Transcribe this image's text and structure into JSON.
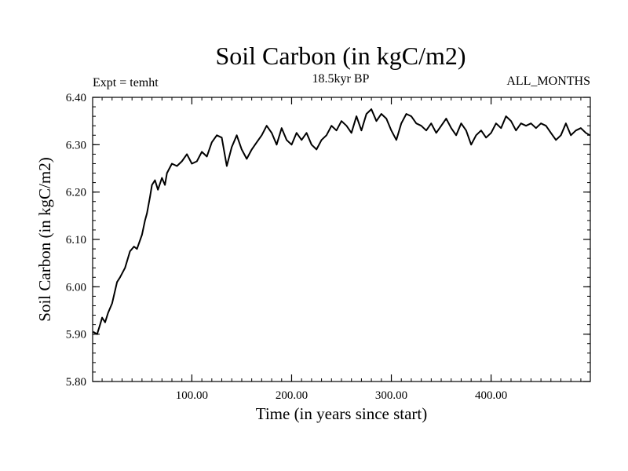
{
  "chart_data": {
    "type": "line",
    "title": "Soil Carbon (in kgC/m2)",
    "subtitle": "18.5kyr BP",
    "left_label": "Expt = temht",
    "right_label": "ALL_MONTHS",
    "xlabel": "Time (in years since start)",
    "ylabel": "Soil Carbon (in kgC/m2)",
    "xlim": [
      0.5,
      499.5
    ],
    "ylim": [
      5.8,
      6.4
    ],
    "x_ticks": [
      100,
      200,
      300,
      400
    ],
    "x_tick_labels": [
      "100.00",
      "200.00",
      "300.00",
      "400.00"
    ],
    "x_minor_step": 10,
    "y_ticks": [
      5.8,
      5.9,
      6.0,
      6.1,
      6.2,
      6.3,
      6.4
    ],
    "y_tick_labels": [
      "5.80",
      "5.90",
      "6.00",
      "6.10",
      "6.20",
      "6.30",
      "6.40"
    ],
    "y_minor_step": 0.02,
    "grid": false,
    "series": [
      {
        "name": "Soil Carbon",
        "color": "#000000",
        "x": [
          1,
          5,
          8,
          10,
          13,
          16,
          20,
          25,
          28,
          33,
          38,
          42,
          45,
          50,
          53,
          55,
          58,
          60,
          63,
          66,
          70,
          73,
          75,
          80,
          85,
          90,
          95,
          100,
          105,
          110,
          115,
          120,
          125,
          130,
          135,
          140,
          145,
          150,
          155,
          160,
          165,
          170,
          175,
          180,
          185,
          190,
          195,
          200,
          205,
          210,
          215,
          220,
          225,
          230,
          235,
          240,
          245,
          250,
          255,
          260,
          265,
          270,
          275,
          280,
          285,
          290,
          295,
          300,
          305,
          310,
          315,
          320,
          325,
          330,
          335,
          340,
          345,
          350,
          355,
          360,
          365,
          370,
          375,
          380,
          385,
          390,
          395,
          400,
          405,
          410,
          415,
          420,
          425,
          430,
          435,
          440,
          445,
          450,
          455,
          460,
          465,
          470,
          475,
          480,
          485,
          490,
          495,
          499
        ],
        "y": [
          5.905,
          5.9,
          5.92,
          5.935,
          5.925,
          5.945,
          5.965,
          6.01,
          6.02,
          6.04,
          6.075,
          6.085,
          6.08,
          6.11,
          6.14,
          6.155,
          6.19,
          6.215,
          6.225,
          6.205,
          6.23,
          6.215,
          6.24,
          6.26,
          6.255,
          6.265,
          6.28,
          6.26,
          6.265,
          6.285,
          6.275,
          6.305,
          6.32,
          6.315,
          6.255,
          6.295,
          6.32,
          6.29,
          6.27,
          6.29,
          6.305,
          6.32,
          6.34,
          6.325,
          6.3,
          6.335,
          6.31,
          6.3,
          6.325,
          6.31,
          6.325,
          6.3,
          6.29,
          6.31,
          6.32,
          6.34,
          6.33,
          6.35,
          6.34,
          6.325,
          6.36,
          6.33,
          6.365,
          6.375,
          6.35,
          6.365,
          6.355,
          6.33,
          6.31,
          6.345,
          6.365,
          6.36,
          6.345,
          6.34,
          6.33,
          6.345,
          6.325,
          6.34,
          6.355,
          6.335,
          6.32,
          6.345,
          6.33,
          6.3,
          6.32,
          6.33,
          6.315,
          6.325,
          6.345,
          6.335,
          6.36,
          6.35,
          6.33,
          6.345,
          6.34,
          6.345,
          6.335,
          6.345,
          6.34,
          6.325,
          6.31,
          6.32,
          6.345,
          6.32,
          6.33,
          6.335,
          6.325,
          6.32
        ]
      }
    ]
  }
}
